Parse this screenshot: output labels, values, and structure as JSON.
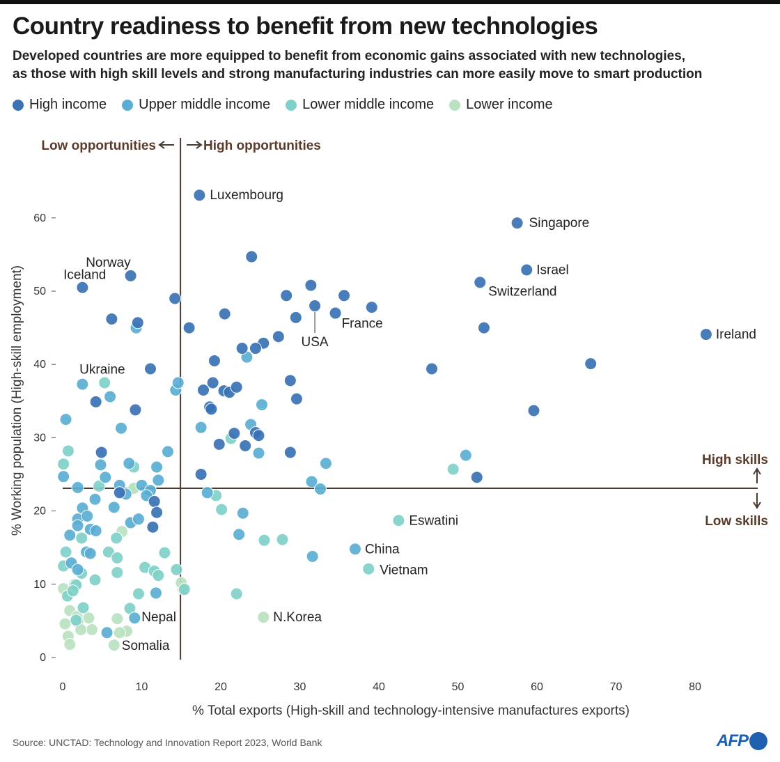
{
  "title": "Country readiness to benefit from new technologies",
  "subtitle_lines": [
    "Developed countries are more equipped to benefit from economic gains associated with new technologies,",
    "as those with high skill levels and strong manufacturing industries can more easily move to smart production"
  ],
  "source": "Source: UNCTAD: Technology and Innovation Report 2023, World Bank",
  "logo": "AFP",
  "chart_data": {
    "type": "scatter",
    "xlabel": "% Total exports (High-skill and technology-intensive manufactures exports)",
    "ylabel": "% Working population (High-skill employment)",
    "xlim": [
      0,
      88
    ],
    "ylim": [
      0,
      66
    ],
    "xticks": [
      0,
      10,
      20,
      30,
      40,
      50,
      60,
      70,
      80
    ],
    "yticks": [
      0,
      10,
      20,
      30,
      40,
      50,
      60
    ],
    "grid": false,
    "legend_placement": "top-left",
    "reference_lines": {
      "x": 14.9,
      "y": 23.1
    },
    "annotations": {
      "low_opportunities": "Low opportunities",
      "high_opportunities": "High opportunities",
      "high_skills": "High skills",
      "low_skills": "Low skills"
    },
    "series": [
      {
        "name": "High income",
        "color": "#3a72b4",
        "points": [
          [
            17.3,
            63.1,
            "Luxembourg"
          ],
          [
            57.5,
            59.3,
            "Singapore"
          ],
          [
            58.7,
            52.9,
            "Israel"
          ],
          [
            52.8,
            51.2,
            "Switzerland"
          ],
          [
            81.4,
            44.1,
            "Ireland"
          ],
          [
            66.8,
            40.1
          ],
          [
            59.6,
            33.7
          ],
          [
            52.4,
            24.6
          ],
          [
            53.3,
            45.0
          ],
          [
            46.7,
            39.4
          ],
          [
            31.9,
            48.0,
            "USA"
          ],
          [
            34.5,
            47.0,
            "France"
          ],
          [
            39.1,
            47.8
          ],
          [
            35.6,
            49.4
          ],
          [
            31.4,
            50.8
          ],
          [
            28.3,
            49.4
          ],
          [
            29.5,
            46.4
          ],
          [
            27.3,
            43.8
          ],
          [
            25.4,
            42.9
          ],
          [
            24.4,
            42.2
          ],
          [
            22.7,
            42.2
          ],
          [
            20.5,
            46.9
          ],
          [
            23.9,
            54.7
          ],
          [
            14.2,
            49.0
          ],
          [
            16.0,
            45.0
          ],
          [
            8.6,
            52.1,
            "Norway"
          ],
          [
            2.5,
            50.5,
            "Iceland"
          ],
          [
            6.2,
            46.2
          ],
          [
            9.5,
            45.7
          ],
          [
            11.1,
            39.4
          ],
          [
            4.2,
            34.9
          ],
          [
            9.2,
            33.8
          ],
          [
            19.2,
            40.5
          ],
          [
            19.0,
            37.5
          ],
          [
            17.8,
            36.5
          ],
          [
            20.4,
            36.4
          ],
          [
            21.1,
            36.2
          ],
          [
            22.0,
            36.9
          ],
          [
            18.6,
            34.2
          ],
          [
            18.8,
            33.9
          ],
          [
            28.8,
            37.8
          ],
          [
            29.6,
            35.3
          ],
          [
            21.7,
            30.6
          ],
          [
            24.4,
            30.7
          ],
          [
            24.8,
            30.3
          ],
          [
            19.8,
            29.1
          ],
          [
            23.1,
            28.9
          ],
          [
            28.8,
            28.0
          ],
          [
            17.5,
            25.0
          ],
          [
            4.9,
            28.0
          ],
          [
            7.2,
            22.5
          ],
          [
            11.6,
            21.3
          ],
          [
            11.9,
            19.8
          ],
          [
            11.4,
            17.8
          ]
        ]
      },
      {
        "name": "Upper middle income",
        "color": "#5aaed3",
        "points": [
          [
            37.0,
            14.8,
            "China"
          ],
          [
            51.0,
            27.6
          ],
          [
            33.3,
            26.5
          ],
          [
            31.5,
            24.0
          ],
          [
            32.6,
            23.0
          ],
          [
            31.6,
            13.8
          ],
          [
            22.8,
            19.7
          ],
          [
            22.3,
            16.8
          ],
          [
            23.3,
            41.0
          ],
          [
            25.2,
            34.5
          ],
          [
            23.8,
            31.8
          ],
          [
            24.8,
            27.9
          ],
          [
            17.5,
            31.4
          ],
          [
            14.3,
            36.5
          ],
          [
            14.6,
            37.5
          ],
          [
            18.3,
            22.5
          ],
          [
            9.3,
            45.0
          ],
          [
            6.0,
            35.6
          ],
          [
            2.5,
            37.3
          ],
          [
            0.4,
            32.5
          ],
          [
            7.4,
            31.3
          ],
          [
            0.1,
            24.7
          ],
          [
            1.9,
            23.2
          ],
          [
            13.3,
            28.1
          ],
          [
            8.4,
            26.5
          ],
          [
            11.9,
            26.0
          ],
          [
            12.1,
            24.2
          ],
          [
            10.0,
            23.5
          ],
          [
            11.1,
            22.8
          ],
          [
            10.6,
            22.1
          ],
          [
            8.0,
            22.3
          ],
          [
            6.5,
            20.5
          ],
          [
            2.5,
            20.4
          ],
          [
            4.8,
            26.3
          ],
          [
            5.4,
            24.6
          ],
          [
            7.2,
            23.5
          ],
          [
            8.6,
            18.4
          ],
          [
            9.6,
            18.9
          ],
          [
            4.1,
            21.6
          ],
          [
            1.9,
            18.9
          ],
          [
            3.1,
            19.3
          ],
          [
            1.9,
            18.0
          ],
          [
            3.5,
            17.5
          ],
          [
            0.9,
            16.7
          ],
          [
            4.2,
            17.3
          ],
          [
            1.1,
            12.9
          ],
          [
            3.0,
            14.4
          ],
          [
            3.5,
            14.2
          ],
          [
            11.8,
            8.8
          ],
          [
            5.6,
            3.4
          ],
          [
            9.1,
            5.4,
            "Nepal"
          ],
          [
            1.9,
            12.0
          ]
        ]
      },
      {
        "name": "Lower middle income",
        "color": "#7fd0c8",
        "points": [
          [
            38.7,
            12.1,
            "Vietnam"
          ],
          [
            42.5,
            18.7,
            "Eswatini"
          ],
          [
            49.4,
            25.7
          ],
          [
            27.8,
            16.1
          ],
          [
            25.5,
            16.0
          ],
          [
            22.0,
            8.7
          ],
          [
            21.3,
            29.9
          ],
          [
            19.4,
            22.1
          ],
          [
            20.1,
            20.2
          ],
          [
            5.3,
            37.5,
            "Ukraine"
          ],
          [
            0.7,
            28.2
          ],
          [
            0.1,
            26.4
          ],
          [
            9.0,
            26.0
          ],
          [
            4.6,
            23.4
          ],
          [
            2.4,
            16.3
          ],
          [
            5.8,
            14.4
          ],
          [
            6.8,
            16.3
          ],
          [
            6.9,
            13.6
          ],
          [
            12.9,
            14.3
          ],
          [
            10.4,
            12.3
          ],
          [
            11.6,
            11.8
          ],
          [
            12.1,
            11.2
          ],
          [
            14.4,
            12.0
          ],
          [
            0.4,
            14.4
          ],
          [
            4.1,
            10.6
          ],
          [
            6.9,
            11.6
          ],
          [
            0.1,
            12.5
          ],
          [
            2.4,
            11.5
          ],
          [
            1.7,
            9.9
          ],
          [
            0.6,
            8.4
          ],
          [
            1.3,
            9.1
          ],
          [
            9.6,
            8.7
          ],
          [
            8.5,
            6.7
          ],
          [
            2.6,
            6.8
          ],
          [
            1.7,
            5.1
          ],
          [
            15.4,
            9.3
          ]
        ]
      },
      {
        "name": "Lower income",
        "color": "#b8e2c0",
        "points": [
          [
            25.4,
            5.5,
            "N.Korea"
          ],
          [
            9.0,
            23.0
          ],
          [
            7.5,
            17.2
          ],
          [
            15.2,
            9.4
          ],
          [
            15.0,
            10.2
          ],
          [
            0.1,
            9.4
          ],
          [
            0.9,
            6.4
          ],
          [
            1.8,
            5.6
          ],
          [
            3.3,
            5.4
          ],
          [
            1.9,
            4.8
          ],
          [
            0.3,
            4.6
          ],
          [
            3.7,
            3.8
          ],
          [
            2.3,
            3.8
          ],
          [
            0.7,
            2.9
          ],
          [
            0.9,
            1.8
          ],
          [
            6.9,
            5.3
          ],
          [
            8.1,
            3.6
          ],
          [
            7.2,
            3.4
          ],
          [
            6.5,
            1.7,
            "Somalia"
          ],
          [
            9.0,
            23.1
          ],
          [
            1.5,
            10.0
          ]
        ]
      }
    ]
  }
}
